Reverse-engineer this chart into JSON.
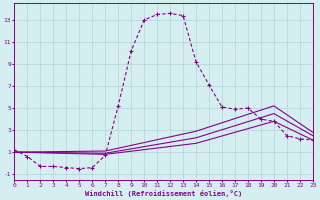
{
  "xlabel": "Windchill (Refroidissement éolien,°C)",
  "bg_color": "#d5eef0",
  "line_color": "#880088",
  "grid_color": "#b8d8db",
  "xlim": [
    0,
    23
  ],
  "ylim": [
    -1.5,
    14.5
  ],
  "xticks": [
    0,
    1,
    2,
    3,
    4,
    5,
    6,
    7,
    8,
    9,
    10,
    11,
    12,
    13,
    14,
    15,
    16,
    17,
    18,
    19,
    20,
    21,
    22,
    23
  ],
  "yticks": [
    -1,
    1,
    3,
    5,
    7,
    9,
    11,
    13
  ],
  "main_x": [
    0,
    1,
    2,
    3,
    4,
    5,
    6,
    7,
    8,
    9,
    10,
    11,
    12,
    13,
    14,
    15,
    16,
    17,
    18,
    19,
    20,
    21,
    22,
    23
  ],
  "main_y": [
    1.2,
    0.6,
    -0.3,
    -0.3,
    -0.4,
    -0.5,
    -0.4,
    0.7,
    5.2,
    10.2,
    13.0,
    13.5,
    13.6,
    13.4,
    9.2,
    7.1,
    5.1,
    4.9,
    5.0,
    4.0,
    3.8,
    2.5,
    2.2,
    2.1
  ],
  "aux_lines": [
    {
      "x": [
        0,
        7,
        14,
        20,
        23
      ],
      "y": [
        1.0,
        0.8,
        1.8,
        3.8,
        2.1
      ]
    },
    {
      "x": [
        0,
        7,
        14,
        20,
        23
      ],
      "y": [
        1.0,
        0.9,
        2.3,
        4.5,
        2.5
      ]
    },
    {
      "x": [
        0,
        7,
        14,
        20,
        23
      ],
      "y": [
        1.0,
        1.1,
        2.9,
        5.2,
        2.8
      ]
    }
  ]
}
